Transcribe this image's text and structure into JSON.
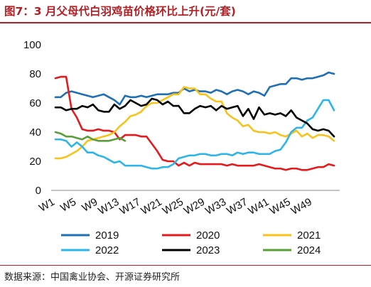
{
  "title": "图7：3 月父母代白羽鸡苗价格环比上升(元/套)",
  "source": "数据来源：中国禽业协会、开源证券研究所",
  "colors": {
    "2019": "#1f6fb5",
    "2020": "#e41a1c",
    "2021": "#f7c31b",
    "2022": "#2cb5e8",
    "2023": "#000000",
    "2024": "#5a9e3a"
  },
  "chart_data": {
    "type": "line",
    "x_ticks": [
      "W1",
      "W5",
      "W9",
      "W13",
      "W17",
      "W21",
      "W25",
      "W29",
      "W33",
      "W37",
      "W41",
      "W45",
      "W49"
    ],
    "ylim": [
      0,
      100
    ],
    "y_ticks": [
      "0",
      "20",
      "40",
      "60",
      "80",
      "100"
    ],
    "legend_placement": "bottom",
    "series": [
      {
        "name": "2019",
        "values": [
          64,
          64,
          67,
          68,
          67,
          66,
          65,
          64,
          65,
          66,
          64,
          62,
          59,
          65,
          64,
          64,
          65,
          64,
          65,
          66,
          66,
          66,
          67,
          67,
          70,
          68,
          69,
          68,
          68,
          67,
          69,
          68,
          66,
          68,
          69,
          68,
          66,
          68,
          67,
          65,
          71,
          72,
          73,
          73,
          77,
          77,
          76,
          77,
          77,
          78,
          79,
          81,
          80
        ]
      },
      {
        "name": "2020",
        "values": [
          77,
          78,
          78,
          56,
          50,
          42,
          41,
          41,
          42,
          41,
          41,
          40,
          35,
          38,
          38,
          38,
          37,
          37,
          32,
          27,
          21,
          20,
          20,
          17,
          19,
          17,
          19,
          18,
          18,
          18,
          18,
          18,
          17,
          18,
          17,
          17,
          17,
          17,
          18,
          17,
          16,
          15,
          15,
          14,
          15,
          15,
          14,
          14,
          15,
          16,
          16,
          18,
          17
        ]
      },
      {
        "name": "2021",
        "values": [
          22,
          22,
          23,
          25,
          27,
          30,
          34,
          35,
          36,
          37,
          38,
          40,
          44,
          47,
          51,
          52,
          54,
          58,
          60,
          60,
          62,
          64,
          66,
          66,
          71,
          70,
          70,
          66,
          66,
          63,
          61,
          61,
          53,
          50,
          48,
          44,
          45,
          41,
          40,
          40,
          39,
          40,
          38,
          37,
          39,
          41,
          37,
          39,
          36,
          38,
          38,
          37,
          34
        ]
      },
      {
        "name": "2022",
        "values": [
          35,
          35,
          34,
          30,
          33,
          30,
          26,
          26,
          24,
          23,
          21,
          19,
          20,
          17,
          17,
          17,
          17,
          16,
          15,
          15,
          16,
          16,
          18,
          22,
          23,
          24,
          24,
          25,
          25,
          24,
          24,
          25,
          25,
          24,
          26,
          25,
          26,
          26,
          25,
          25,
          25,
          27,
          28,
          33,
          40,
          43,
          43,
          48,
          50,
          56,
          62,
          62,
          55
        ]
      },
      {
        "name": "2023",
        "values": [
          57,
          57,
          55,
          56,
          56,
          58,
          57,
          59,
          55,
          54,
          54,
          59,
          56,
          58,
          62,
          60,
          58,
          59,
          63,
          62,
          59,
          61,
          58,
          58,
          53,
          53,
          56,
          58,
          57,
          58,
          55,
          58,
          56,
          57,
          58,
          51,
          56,
          49,
          57,
          52,
          53,
          52,
          53,
          51,
          55,
          50,
          48,
          46,
          42,
          41,
          42,
          41,
          37
        ]
      },
      {
        "name": "2024",
        "values": [
          40,
          39,
          37,
          37,
          36,
          35,
          37,
          35,
          34,
          34,
          34,
          35,
          36,
          34
        ]
      }
    ]
  }
}
